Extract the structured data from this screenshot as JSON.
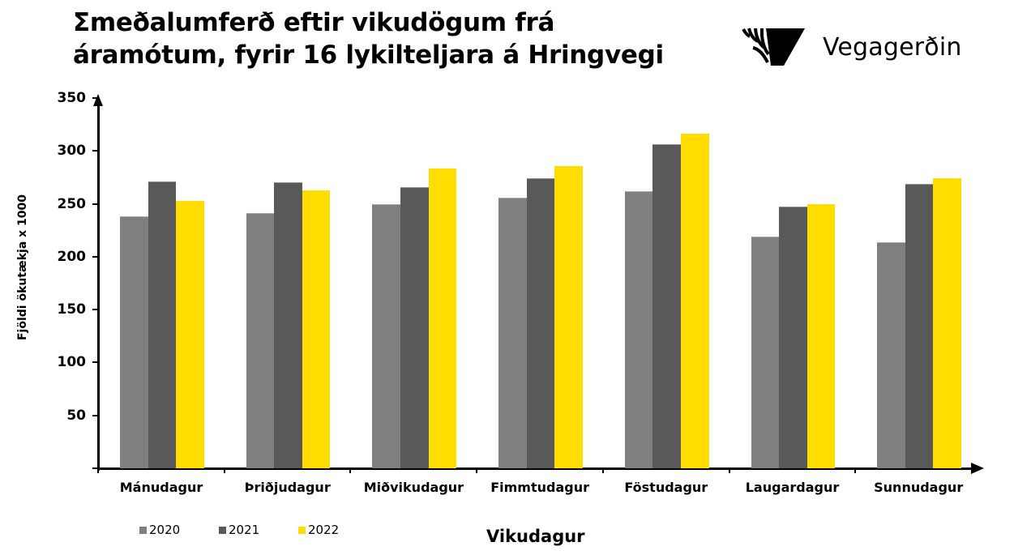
{
  "header": {
    "title_line1": "Σmeðalumferð eftir vikudögum frá",
    "title_line2": "áramótum, fyrir 16 lykilteljara á Hringvegi",
    "logo_text": "Vegagerðin",
    "logo_icon": "vegagerdin-logo-icon"
  },
  "colors": {
    "2020": "#7f7f7f",
    "2021": "#595959",
    "2022": "#ffdd00"
  },
  "chart_data": {
    "type": "bar",
    "title": "Σmeðalumferð eftir vikudögum frá áramótum, fyrir 16 lykilteljara á Hringvegi",
    "xlabel": "Vikudagur",
    "ylabel": "Fjöldi ökutækja x 1000",
    "ylim": [
      0,
      350
    ],
    "yticks": [
      50,
      100,
      150,
      200,
      250,
      300,
      350
    ],
    "ytick_labels": [
      "50",
      "100",
      "150",
      "200",
      "250",
      "300",
      "350"
    ],
    "grid": false,
    "legend_position": "bottom-left",
    "categories": [
      "Mánudagur",
      "Þriðjudagur",
      "Miðvikudagur",
      "Fimmtudagur",
      "Föstudagur",
      "Laugardagur",
      "Sunnudagur"
    ],
    "series": [
      {
        "name": "2020",
        "color": "#7f7f7f",
        "values": [
          238,
          241,
          250,
          256,
          262,
          219,
          214
        ]
      },
      {
        "name": "2021",
        "color": "#595959",
        "values": [
          271,
          270,
          266,
          274,
          306,
          247,
          269
        ]
      },
      {
        "name": "2022",
        "color": "#ffdd00",
        "values": [
          253,
          263,
          283,
          286,
          316,
          250,
          274
        ]
      }
    ]
  }
}
